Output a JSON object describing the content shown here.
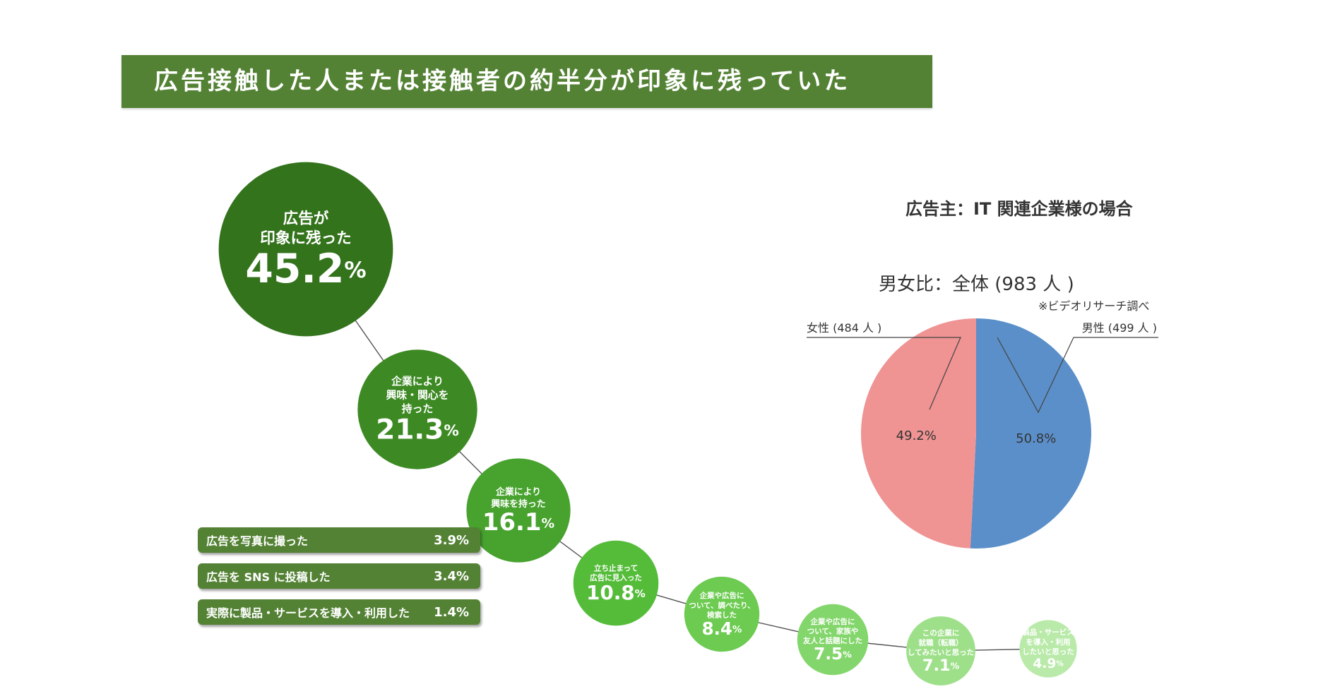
{
  "title": "広告接触した人または接触者の約半分が印象に残っていた",
  "chart_data": [
    {
      "type": "bubble",
      "unit": "%",
      "items": [
        {
          "label_lines": [
            "広告が",
            "印象に残った"
          ],
          "value": 45.2,
          "color": "#33731c"
        },
        {
          "label_lines": [
            "企業により",
            "興味・関心を",
            "持った"
          ],
          "value": 21.3,
          "color": "#3d8a24"
        },
        {
          "label_lines": [
            "企業により",
            "興味を持った"
          ],
          "value": 16.1,
          "color": "#47a22e"
        },
        {
          "label_lines": [
            "立ち止まって",
            "広告に見入った"
          ],
          "value": 10.8,
          "color": "#55bc3a"
        },
        {
          "label_lines": [
            "企業や広告に",
            "ついて、調べたり、",
            "検索した"
          ],
          "value": 8.4,
          "color": "#6ccb50"
        },
        {
          "label_lines": [
            "企業や広告に",
            "ついて、家族や",
            "友人と話題にした"
          ],
          "value": 7.5,
          "color": "#83d66b"
        },
        {
          "label_lines": [
            "この企業に",
            "就職（転職）",
            "してみたいと思った"
          ],
          "value": 7.1,
          "color": "#9ee08a"
        },
        {
          "label_lines": [
            "製品・サービス",
            "を導入・利用",
            "したいと思った"
          ],
          "value": 4.9,
          "color": "#b9eaa9"
        }
      ]
    },
    {
      "type": "table",
      "rows": [
        {
          "label": "広告を写真に撮った",
          "value": "3.9%"
        },
        {
          "label": "広告を SNS に投稿した",
          "value": "3.4%"
        },
        {
          "label": "実際に製品・サービスを導入・利用した",
          "value": "1.4%"
        }
      ]
    },
    {
      "type": "pie",
      "heading": "広告主：IT 関連企業様の場合",
      "title": "男女比：全体 (983 人 )",
      "source": "※ビデオリサーチ調べ",
      "slices": [
        {
          "name": "男性 (499 人 )",
          "value": 50.8,
          "label": "50.8%",
          "color": "#5b8fc9"
        },
        {
          "name": "女性 (484 人 )",
          "value": 49.2,
          "label": "49.2%",
          "color": "#ef9393"
        }
      ]
    }
  ]
}
